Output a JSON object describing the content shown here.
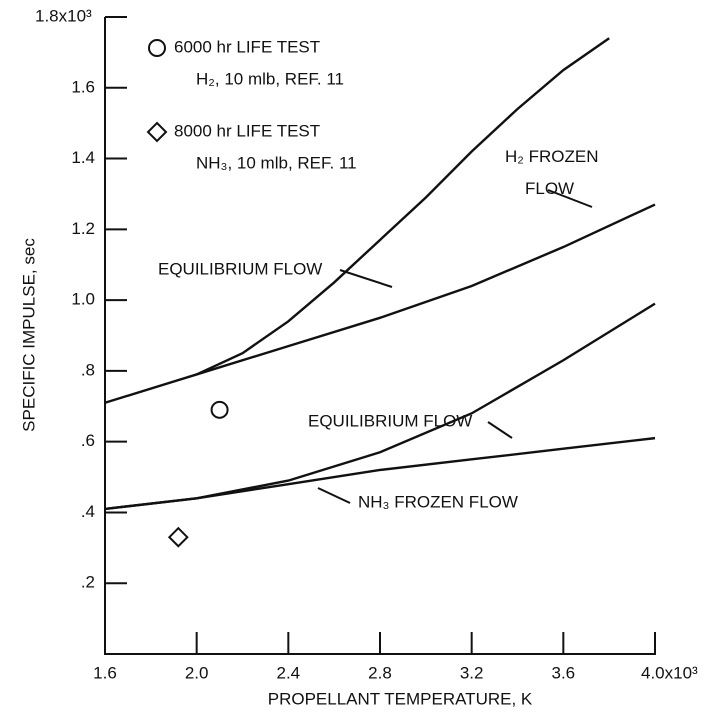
{
  "chart_data": {
    "type": "line",
    "xlabel": "PROPELLANT TEMPERATURE, K",
    "ylabel": "SPECIFIC IMPULSE, sec",
    "xlim": [
      1.6,
      4.0
    ],
    "ylim": [
      0,
      1.8
    ],
    "xticks": [
      1.6,
      {
        "value": 2.0,
        "label": "2.0"
      },
      2.4,
      2.8,
      3.2,
      3.6,
      {
        "value": 4.0,
        "label": "4.0x10³"
      }
    ],
    "yticks": [
      {
        "value": 0.2,
        "label": ".2"
      },
      {
        "value": 0.4,
        "label": ".4"
      },
      {
        "value": 0.6,
        "label": ".6"
      },
      {
        "value": 0.8,
        "label": ".8"
      },
      {
        "value": 1.0,
        "label": "1.0"
      },
      1.2,
      1.4,
      1.6,
      {
        "value": 1.8,
        "label": "1.8x10³"
      }
    ],
    "series": [
      {
        "name": "EQUILIBRIUM FLOW",
        "color": "#111111",
        "x": [
          2.0,
          2.2,
          2.4,
          2.6,
          2.8,
          3.0,
          3.2,
          3.4,
          3.6,
          3.8
        ],
        "values": [
          0.79,
          0.85,
          0.94,
          1.05,
          1.17,
          1.29,
          1.42,
          1.54,
          1.65,
          1.74
        ]
      },
      {
        "name": "H₂ FROZEN FLOW",
        "color": "#111111",
        "x": [
          1.6,
          2.0,
          2.4,
          2.8,
          3.2,
          3.6,
          4.0
        ],
        "values": [
          0.71,
          0.79,
          0.87,
          0.95,
          1.04,
          1.15,
          1.27
        ]
      },
      {
        "name": "EQUILIBRIUM FLOW",
        "color": "#111111",
        "x": [
          1.6,
          2.0,
          2.4,
          2.8,
          3.2,
          3.6,
          4.0
        ],
        "values": [
          0.41,
          0.44,
          0.49,
          0.57,
          0.68,
          0.83,
          0.99
        ]
      },
      {
        "name": "NH₃ FROZEN FLOW",
        "color": "#111111",
        "x": [
          1.6,
          2.0,
          2.4,
          2.8,
          3.2,
          3.6,
          4.0
        ],
        "values": [
          0.41,
          0.44,
          0.48,
          0.52,
          0.55,
          0.58,
          0.61
        ]
      }
    ],
    "points": [
      {
        "name": "6000 hr LIFE TEST",
        "detail": "H₂, 10 mlb, REF. 11",
        "marker": "circle",
        "x": [
          2.1
        ],
        "values": [
          0.69
        ]
      },
      {
        "name": "8000 hr LIFE TEST",
        "detail": "NH₃, 10 mlb, REF. 11",
        "marker": "diamond",
        "x": [
          1.92
        ],
        "values": [
          0.33
        ]
      }
    ]
  }
}
